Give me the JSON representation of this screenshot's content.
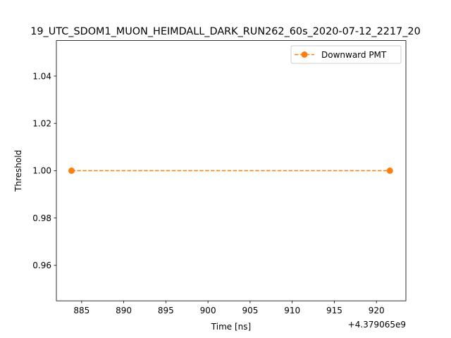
{
  "chart_data": {
    "type": "line",
    "title": "19_UTC_SDOM1_MUON_HEIMDALL_DARK_RUN262_60s_2020-07-12_2217_20",
    "xlabel": "Time [ns]",
    "ylabel": "Threshold",
    "x_offset_label": "+4.379065e9",
    "xlim": [
      882,
      923.5
    ],
    "ylim": [
      0.945,
      1.055
    ],
    "x_ticks": [
      885,
      890,
      895,
      900,
      905,
      910,
      915,
      920
    ],
    "y_ticks": [
      0.96,
      0.98,
      1.0,
      1.02,
      1.04
    ],
    "y_tick_labels": [
      "0.96",
      "0.98",
      "1.00",
      "1.02",
      "1.04"
    ],
    "grid": false,
    "legend_position": "top-right",
    "series": [
      {
        "name": "Downward PMT",
        "color": "#ff7f0e",
        "line_style": "dashed",
        "marker": "circle",
        "x": [
          883.8,
          921.6
        ],
        "y": [
          1.0,
          1.0
        ]
      }
    ]
  }
}
